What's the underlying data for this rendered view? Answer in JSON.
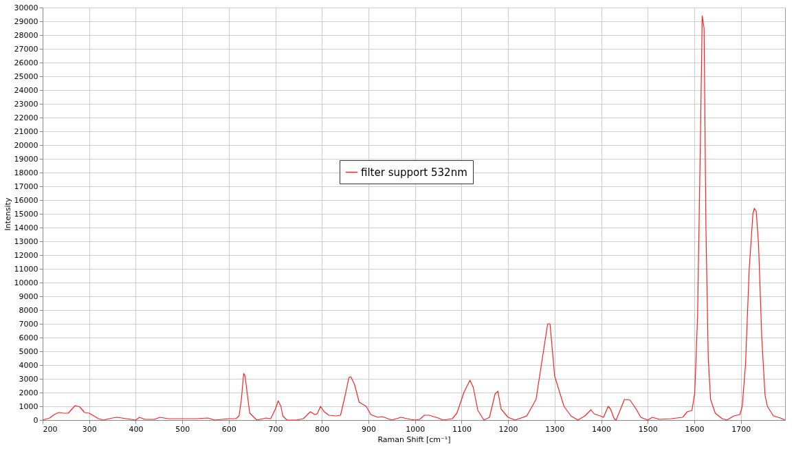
{
  "chart_data": {
    "type": "line",
    "xlabel": "Raman Shift [cm⁻¹]",
    "ylabel": "Intensity",
    "xlim": [
      200,
      1795
    ],
    "xticks": [
      200,
      300,
      400,
      500,
      600,
      700,
      800,
      900,
      1000,
      1100,
      1200,
      1300,
      1400,
      1500,
      1600,
      1700
    ],
    "ylim": [
      0,
      30000
    ],
    "yticks": [
      0,
      1000,
      2000,
      3000,
      4000,
      5000,
      6000,
      7000,
      8000,
      9000,
      10000,
      11000,
      12000,
      13000,
      14000,
      15000,
      16000,
      17000,
      18000,
      19000,
      20000,
      21000,
      22000,
      23000,
      24000,
      25000,
      26000,
      27000,
      28000,
      29000,
      30000
    ],
    "grid": true,
    "legend": "top",
    "marker": "none",
    "line_style": "solid",
    "series": [
      {
        "name": "filter support 532nm",
        "color": "#ff2020",
        "x": [
          200,
          215,
          225,
          235,
          245,
          255,
          270,
          280,
          290,
          300,
          320,
          330,
          350,
          360,
          380,
          400,
          408,
          420,
          440,
          452,
          470,
          500,
          530,
          555,
          570,
          600,
          615,
          622,
          627,
          632,
          635,
          640,
          645,
          660,
          680,
          690,
          700,
          706,
          712,
          716,
          725,
          745,
          760,
          775,
          785,
          790,
          797,
          805,
          815,
          830,
          840,
          850,
          858,
          862,
          870,
          880,
          895,
          905,
          920,
          930,
          950,
          970,
          990,
          1000,
          1010,
          1020,
          1030,
          1050,
          1060,
          1080,
          1090,
          1105,
          1118,
          1125,
          1135,
          1148,
          1160,
          1172,
          1178,
          1185,
          1200,
          1215,
          1240,
          1260,
          1275,
          1285,
          1290,
          1300,
          1320,
          1335,
          1350,
          1365,
          1378,
          1385,
          1398,
          1405,
          1415,
          1420,
          1428,
          1432,
          1450,
          1462,
          1475,
          1485,
          1500,
          1510,
          1525,
          1550,
          1575,
          1585,
          1595,
          1601,
          1607,
          1613,
          1617,
          1621,
          1625,
          1630,
          1635,
          1645,
          1660,
          1670,
          1685,
          1698,
          1703,
          1710,
          1718,
          1726,
          1729,
          1733,
          1738,
          1745,
          1752,
          1757,
          1770,
          1785,
          1795
        ],
        "values": [
          0,
          150,
          400,
          550,
          500,
          500,
          1050,
          950,
          550,
          500,
          100,
          0,
          150,
          200,
          100,
          0,
          200,
          50,
          50,
          200,
          100,
          100,
          100,
          150,
          0,
          100,
          100,
          300,
          1500,
          3400,
          3200,
          1800,
          500,
          0,
          150,
          100,
          800,
          1400,
          1000,
          300,
          0,
          0,
          100,
          600,
          400,
          450,
          1000,
          600,
          350,
          300,
          350,
          1800,
          3100,
          3150,
          2600,
          1300,
          1000,
          400,
          200,
          250,
          0,
          200,
          50,
          0,
          50,
          350,
          350,
          150,
          0,
          100,
          500,
          2000,
          2900,
          2400,
          700,
          0,
          200,
          1900,
          2100,
          800,
          200,
          0,
          300,
          1500,
          4800,
          7000,
          7000,
          3200,
          1000,
          300,
          0,
          300,
          750,
          450,
          300,
          200,
          1000,
          800,
          100,
          0,
          1500,
          1450,
          800,
          200,
          0,
          200,
          50,
          100,
          200,
          600,
          700,
          2000,
          7500,
          20000,
          29400,
          28500,
          14000,
          4500,
          1500,
          500,
          100,
          0,
          300,
          400,
          1000,
          4000,
          11000,
          15000,
          15400,
          15200,
          12800,
          6000,
          1800,
          1000,
          300,
          150,
          0
        ]
      }
    ]
  }
}
